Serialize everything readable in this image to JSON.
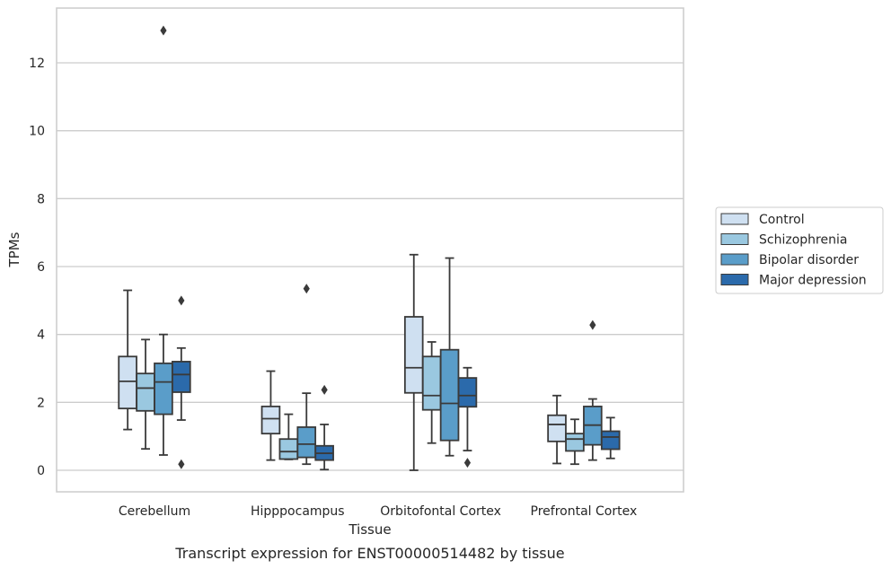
{
  "caption": "Transcript expression for ENST00000514482 by tissue",
  "chart_data": {
    "type": "box",
    "title": "",
    "xlabel": "Tissue",
    "ylabel": "TPMs",
    "ylim": [
      -0.6,
      13.6
    ],
    "yticks": [
      0,
      2,
      4,
      6,
      8,
      10,
      12
    ],
    "grid": "horizontal",
    "legend_position": "right",
    "categories": [
      "Cerebellum",
      "Hipppocampus",
      "Orbitofontal Cortex",
      "Prefrontal Cortex"
    ],
    "series": [
      {
        "name": "Control",
        "color": "#cfe0f1",
        "boxes": [
          {
            "whislo": 1.2,
            "q1": 1.82,
            "med": 2.62,
            "q3": 3.35,
            "whishi": 5.3,
            "fliers": []
          },
          {
            "whislo": 0.3,
            "q1": 1.08,
            "med": 1.52,
            "q3": 1.88,
            "whishi": 2.92,
            "fliers": []
          },
          {
            "whislo": 0.0,
            "q1": 2.28,
            "med": 3.02,
            "q3": 4.52,
            "whishi": 6.35,
            "fliers": []
          },
          {
            "whislo": 0.2,
            "q1": 0.85,
            "med": 1.35,
            "q3": 1.62,
            "whishi": 2.2,
            "fliers": []
          }
        ]
      },
      {
        "name": "Schizophrenia",
        "color": "#9ac8e0",
        "boxes": [
          {
            "whislo": 0.63,
            "q1": 1.75,
            "med": 2.42,
            "q3": 2.85,
            "whishi": 3.85,
            "fliers": []
          },
          {
            "whislo": 0.32,
            "q1": 0.33,
            "med": 0.55,
            "q3": 0.92,
            "whishi": 1.65,
            "fliers": []
          },
          {
            "whislo": 0.8,
            "q1": 1.78,
            "med": 2.2,
            "q3": 3.35,
            "whishi": 3.78,
            "fliers": []
          },
          {
            "whislo": 0.18,
            "q1": 0.57,
            "med": 0.92,
            "q3": 1.08,
            "whishi": 1.5,
            "fliers": []
          }
        ]
      },
      {
        "name": "Bipolar disorder",
        "color": "#5a9dc9",
        "boxes": [
          {
            "whislo": 0.45,
            "q1": 1.65,
            "med": 2.6,
            "q3": 3.15,
            "whishi": 4.0,
            "fliers": [
              12.95
            ]
          },
          {
            "whislo": 0.18,
            "q1": 0.38,
            "med": 0.77,
            "q3": 1.27,
            "whishi": 2.27,
            "fliers": [
              5.35
            ]
          },
          {
            "whislo": 0.43,
            "q1": 0.88,
            "med": 1.97,
            "q3": 3.55,
            "whishi": 6.25,
            "fliers": []
          },
          {
            "whislo": 0.3,
            "q1": 0.75,
            "med": 1.33,
            "q3": 1.88,
            "whishi": 2.1,
            "fliers": [
              4.28
            ]
          }
        ]
      },
      {
        "name": "Major depression",
        "color": "#2b6aab",
        "boxes": [
          {
            "whislo": 1.48,
            "q1": 2.3,
            "med": 2.82,
            "q3": 3.2,
            "whishi": 3.6,
            "fliers": [
              0.18,
              5.0
            ]
          },
          {
            "whislo": 0.02,
            "q1": 0.3,
            "med": 0.5,
            "q3": 0.72,
            "whishi": 1.35,
            "fliers": [
              2.37
            ]
          },
          {
            "whislo": 0.58,
            "q1": 1.87,
            "med": 2.2,
            "q3": 2.72,
            "whishi": 3.02,
            "fliers": [
              0.22
            ]
          },
          {
            "whislo": 0.35,
            "q1": 0.62,
            "med": 0.98,
            "q3": 1.15,
            "whishi": 1.55,
            "fliers": []
          }
        ]
      }
    ]
  }
}
